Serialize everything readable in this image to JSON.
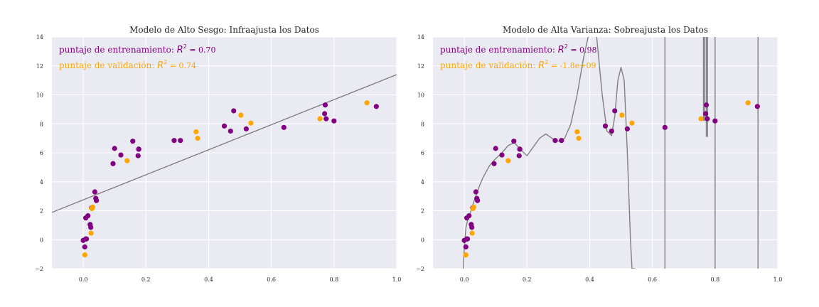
{
  "colors": {
    "training": "#800080",
    "validation": "#FFA500",
    "model_line": "#808080",
    "plot_background": "#EAEAF2",
    "grid": "#FFFFFF"
  },
  "chart_data": [
    {
      "type": "scatter",
      "title": "Modelo de Alto Sesgo: Infraajusta los Datos",
      "xlabel": "",
      "ylabel": "",
      "xlim": [
        -0.1,
        1.0
      ],
      "ylim": [
        -2,
        14
      ],
      "xticks": [
        "0.0",
        "0.2",
        "0.4",
        "0.6",
        "0.8",
        "1.0"
      ],
      "yticks": [
        "−2",
        "0",
        "2",
        "4",
        "6",
        "8",
        "10",
        "12",
        "14"
      ],
      "grid": true,
      "annotations": [
        {
          "label": "puntaje de entrenamiento: ",
          "r2": "R",
          "sup": "2",
          "value": " = 0.70",
          "color": "#800080"
        },
        {
          "label": "puntaje de validación: ",
          "r2": "R",
          "sup": "2",
          "value": " = 0.74",
          "color": "#FFA500"
        }
      ],
      "model": {
        "kind": "linear",
        "slope": 8.65,
        "intercept": 2.75
      },
      "series": [
        {
          "name": "entrenamiento",
          "color": "#800080",
          "x": [
            0.0,
            0.005,
            0.008,
            0.008,
            0.01,
            0.015,
            0.022,
            0.024,
            0.027,
            0.037,
            0.04,
            0.042,
            0.095,
            0.1,
            0.12,
            0.158,
            0.175,
            0.177,
            0.177,
            0.29,
            0.31,
            0.45,
            0.47,
            0.48,
            0.52,
            0.64,
            0.77,
            0.772,
            0.775,
            0.8,
            0.935
          ],
          "y": [
            -0.05,
            -0.5,
            1.5,
            0.05,
            0.05,
            1.65,
            1.05,
            0.85,
            2.2,
            3.3,
            2.85,
            2.7,
            5.25,
            6.3,
            5.85,
            6.8,
            5.8,
            6.25,
            6.25,
            6.85,
            6.85,
            7.85,
            7.5,
            8.9,
            7.65,
            7.75,
            8.7,
            9.3,
            8.35,
            8.2,
            9.2
          ]
        },
        {
          "name": "validación",
          "color": "#FFA500",
          "x": [
            0.005,
            0.025,
            0.028,
            0.03,
            0.14,
            0.36,
            0.365,
            0.503,
            0.535,
            0.755,
            0.905
          ],
          "y": [
            -1.05,
            0.45,
            2.15,
            2.25,
            5.45,
            7.45,
            7.0,
            8.6,
            8.05,
            8.35,
            9.45
          ]
        }
      ]
    },
    {
      "type": "scatter",
      "title": "Modelo de Alta Varianza: Sobreajusta los Datos",
      "xlabel": "",
      "ylabel": "",
      "xlim": [
        -0.1,
        1.0
      ],
      "ylim": [
        -2,
        14
      ],
      "xticks": [
        "0.0",
        "0.2",
        "0.4",
        "0.6",
        "0.8",
        "1.0"
      ],
      "yticks": [
        "−2",
        "0",
        "2",
        "4",
        "6",
        "8",
        "10",
        "12",
        "14"
      ],
      "grid": true,
      "annotations": [
        {
          "label": "puntaje de entrenamiento: ",
          "r2": "R",
          "sup": "2",
          "value": " = 0.98",
          "color": "#800080"
        },
        {
          "label": "puntaje de validación: ",
          "r2": "R",
          "sup": "2",
          "value": " = -1.8e+09",
          "color": "#FFA500"
        }
      ],
      "model": {
        "kind": "polyline",
        "x": [
          -0.003,
          0.0,
          0.005,
          0.01,
          0.02,
          0.03,
          0.04,
          0.05,
          0.06,
          0.08,
          0.1,
          0.12,
          0.14,
          0.16,
          0.18,
          0.2,
          0.22,
          0.24,
          0.26,
          0.28,
          0.3,
          0.32,
          0.34,
          0.36,
          0.38,
          0.4,
          0.42,
          0.44,
          0.455,
          0.47,
          0.48,
          0.49,
          0.5,
          0.51,
          0.52,
          0.53,
          0.535,
          0.545
        ],
        "y": [
          -2.0,
          -0.5,
          0.8,
          1.3,
          1.9,
          2.6,
          3.2,
          3.8,
          4.3,
          5.1,
          5.6,
          6.0,
          6.5,
          6.7,
          6.2,
          5.8,
          6.4,
          7.0,
          7.3,
          7.0,
          6.8,
          7.0,
          8.0,
          10.0,
          12.5,
          14.5,
          14.5,
          10.0,
          7.5,
          7.2,
          8.5,
          11.0,
          11.9,
          11.0,
          6.0,
          0.0,
          -2.0,
          -2.0
        ],
        "spikes": [
          {
            "x": 0.64,
            "from": -2,
            "to": 14
          },
          {
            "x": 0.763,
            "from": 14,
            "to": 8.2
          },
          {
            "x": 0.767,
            "from": 8.2,
            "to": 14
          },
          {
            "x": 0.772,
            "from": 14,
            "to": 7.1
          },
          {
            "x": 0.776,
            "from": 7.1,
            "to": 14
          },
          {
            "x": 0.8,
            "from": 14,
            "to": -2
          },
          {
            "x": 0.937,
            "from": -2,
            "to": 14
          }
        ]
      },
      "series": [
        {
          "name": "entrenamiento",
          "color": "#800080",
          "x": [
            0.0,
            0.005,
            0.008,
            0.008,
            0.01,
            0.015,
            0.022,
            0.024,
            0.027,
            0.037,
            0.04,
            0.042,
            0.095,
            0.1,
            0.12,
            0.158,
            0.175,
            0.177,
            0.177,
            0.29,
            0.31,
            0.45,
            0.47,
            0.48,
            0.52,
            0.64,
            0.77,
            0.772,
            0.775,
            0.8,
            0.935
          ],
          "y": [
            -0.05,
            -0.5,
            1.5,
            0.05,
            0.05,
            1.65,
            1.05,
            0.85,
            2.2,
            3.3,
            2.85,
            2.7,
            5.25,
            6.3,
            5.85,
            6.8,
            5.8,
            6.25,
            6.25,
            6.85,
            6.85,
            7.85,
            7.5,
            8.9,
            7.65,
            7.75,
            8.7,
            9.3,
            8.35,
            8.2,
            9.2
          ]
        },
        {
          "name": "validación",
          "color": "#FFA500",
          "x": [
            0.005,
            0.025,
            0.028,
            0.03,
            0.14,
            0.36,
            0.365,
            0.503,
            0.535,
            0.755,
            0.905
          ],
          "y": [
            -1.05,
            0.45,
            2.15,
            2.25,
            5.45,
            7.45,
            7.0,
            8.6,
            8.05,
            8.35,
            9.45
          ]
        }
      ]
    }
  ]
}
